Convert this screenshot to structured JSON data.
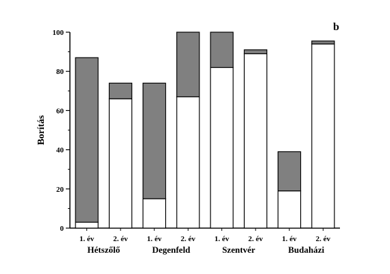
{
  "chart_data": {
    "type": "bar",
    "stacked": true,
    "panel_label": "b",
    "ylabel": "Borítás",
    "ylim": [
      0,
      100
    ],
    "yticks": [
      0,
      20,
      40,
      60,
      80,
      100
    ],
    "categories": [
      "1. év",
      "2. év",
      "1. év",
      "2. év",
      "1. év",
      "2. év",
      "1. év",
      "2. év"
    ],
    "groups": [
      {
        "label": "Hétszőlő",
        "bars": [
          0,
          1
        ]
      },
      {
        "label": "Degenfeld",
        "bars": [
          2,
          3
        ]
      },
      {
        "label": "Szentvér",
        "bars": [
          4,
          5
        ]
      },
      {
        "label": "Budaházi",
        "bars": [
          6,
          7
        ]
      }
    ],
    "series": [
      {
        "values": [
          3,
          66,
          15,
          67,
          82,
          89,
          19,
          94
        ],
        "color": "#ffffff"
      },
      {
        "values": [
          84,
          8,
          59,
          33,
          18,
          2,
          20,
          1.5
        ],
        "color": "#808080"
      }
    ],
    "grid": false,
    "legend": "none"
  }
}
